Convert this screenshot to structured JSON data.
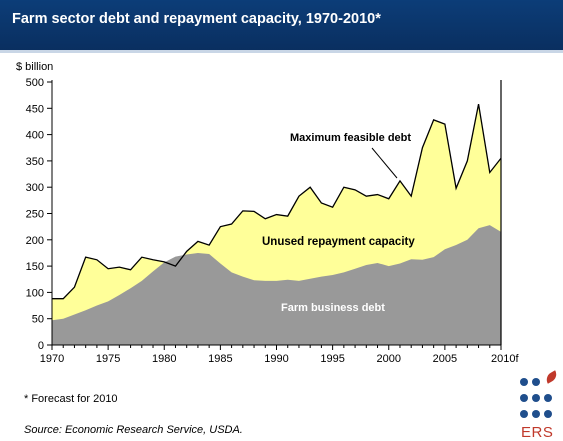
{
  "header": {
    "title": "Farm sector debt and repayment capacity, 1970-2010*"
  },
  "colors": {
    "header_bg": "#0c3d78",
    "capacity_fill": "#ffff99",
    "debt_fill": "#999999",
    "logo_blue": "#1f4e8c",
    "logo_red": "#c0392b"
  },
  "chart_data": {
    "type": "area",
    "title": "Farm sector debt and repayment capacity, 1970-2010*",
    "ylabel": "$ billion",
    "xlabel": "",
    "xlim": [
      1970,
      2010
    ],
    "ylim": [
      0,
      500
    ],
    "x_ticks": [
      1970,
      1975,
      1980,
      1985,
      1990,
      1995,
      2000,
      2005
    ],
    "x_tick_labels": [
      "1970",
      "1975",
      "1980",
      "1985",
      "1990",
      "1995",
      "2000",
      "2005"
    ],
    "x_final_label": "2010f",
    "y_ticks": [
      0,
      50,
      100,
      150,
      200,
      250,
      300,
      350,
      400,
      450,
      500
    ],
    "x": [
      1970,
      1971,
      1972,
      1973,
      1974,
      1975,
      1976,
      1977,
      1978,
      1979,
      1980,
      1981,
      1982,
      1983,
      1984,
      1985,
      1986,
      1987,
      1988,
      1989,
      1990,
      1991,
      1992,
      1993,
      1994,
      1995,
      1996,
      1997,
      1998,
      1999,
      2000,
      2001,
      2002,
      2003,
      2004,
      2005,
      2006,
      2007,
      2008,
      2009,
      2010
    ],
    "series": [
      {
        "name": "Maximum feasible debt",
        "values": [
          88,
          88,
          110,
          167,
          162,
          145,
          148,
          143,
          167,
          162,
          158,
          150,
          178,
          197,
          190,
          225,
          230,
          255,
          254,
          240,
          248,
          245,
          283,
          300,
          270,
          262,
          300,
          295,
          283,
          286,
          278,
          312,
          283,
          375,
          428,
          420,
          298,
          350,
          458,
          328,
          355
        ]
      },
      {
        "name": "Farm business debt",
        "values": [
          47,
          50,
          58,
          66,
          75,
          83,
          95,
          108,
          122,
          140,
          157,
          168,
          172,
          175,
          173,
          155,
          138,
          130,
          123,
          122,
          122,
          124,
          122,
          126,
          130,
          133,
          138,
          145,
          152,
          156,
          150,
          155,
          163,
          162,
          167,
          182,
          190,
          200,
          222,
          228,
          215
        ]
      }
    ],
    "annotations": [
      "Maximum feasible debt",
      "Unused repayment capacity",
      "Farm business debt"
    ]
  },
  "footnote": "* Forecast for 2010",
  "source": "Source: Economic Research Service, USDA.",
  "logo": {
    "text": "ERS"
  }
}
